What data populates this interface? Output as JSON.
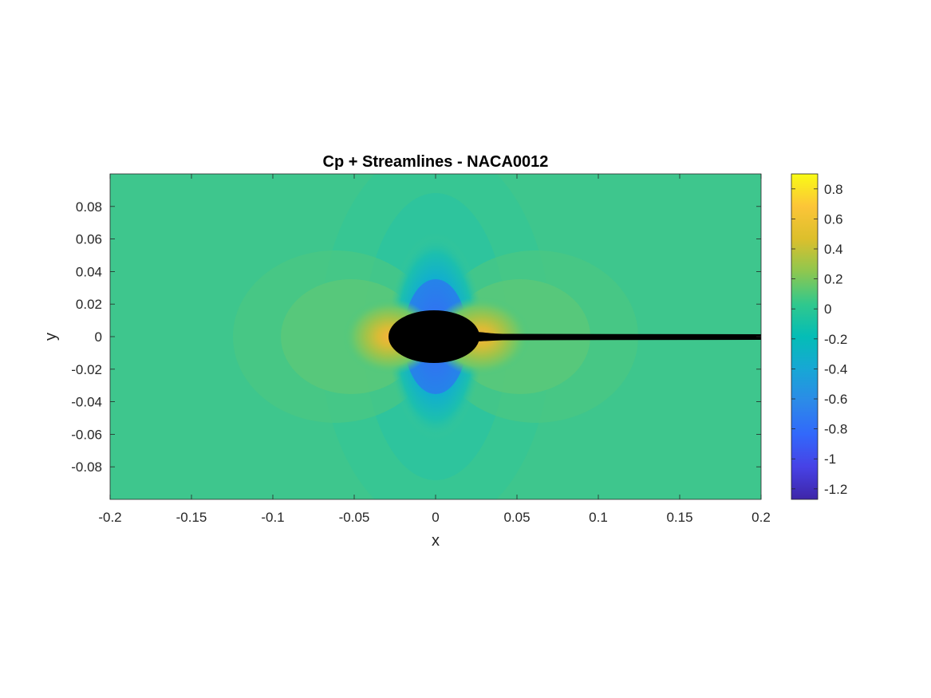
{
  "chart_data": {
    "type": "heatmap",
    "title": "Cp + Streamlines - NACA0012",
    "xlabel": "x",
    "ylabel": "y",
    "xlim": [
      -0.2,
      0.2
    ],
    "ylim": [
      -0.1,
      0.1
    ],
    "xticks": [
      -0.2,
      -0.15,
      -0.1,
      -0.05,
      0,
      0.05,
      0.1,
      0.15,
      0.2
    ],
    "xtick_labels": [
      "-0.2",
      "-0.15",
      "-0.1",
      "-0.05",
      "0",
      "0.05",
      "0.1",
      "0.15",
      "0.2"
    ],
    "yticks": [
      0.08,
      0.06,
      0.04,
      0.02,
      0,
      -0.02,
      -0.04,
      -0.06,
      -0.08
    ],
    "ytick_labels": [
      "0.08",
      "0.06",
      "0.04",
      "0.02",
      "0",
      "-0.02",
      "-0.04",
      "-0.06",
      "-0.08"
    ],
    "colorbar": {
      "range": [
        -1.27,
        0.9
      ],
      "ticks": [
        0.8,
        0.6,
        0.4,
        0.2,
        0,
        -0.2,
        -0.4,
        -0.6,
        -0.8,
        -1,
        -1.2
      ],
      "tick_labels": [
        "0.8",
        "0.6",
        "0.4",
        "0.2",
        "0",
        "-0.2",
        "-0.4",
        "-0.6",
        "-0.8",
        "-1",
        "-1.2"
      ],
      "colormap": "parula"
    },
    "body": {
      "shape": "ellipse",
      "center_x": 0,
      "center_y": 0,
      "half_length": 0.028,
      "half_thickness": 0.016,
      "color": "#000000"
    },
    "wake": {
      "x_start": 0.025,
      "x_end": 0.2,
      "y": 0,
      "color": "#000000"
    },
    "grid": false
  }
}
